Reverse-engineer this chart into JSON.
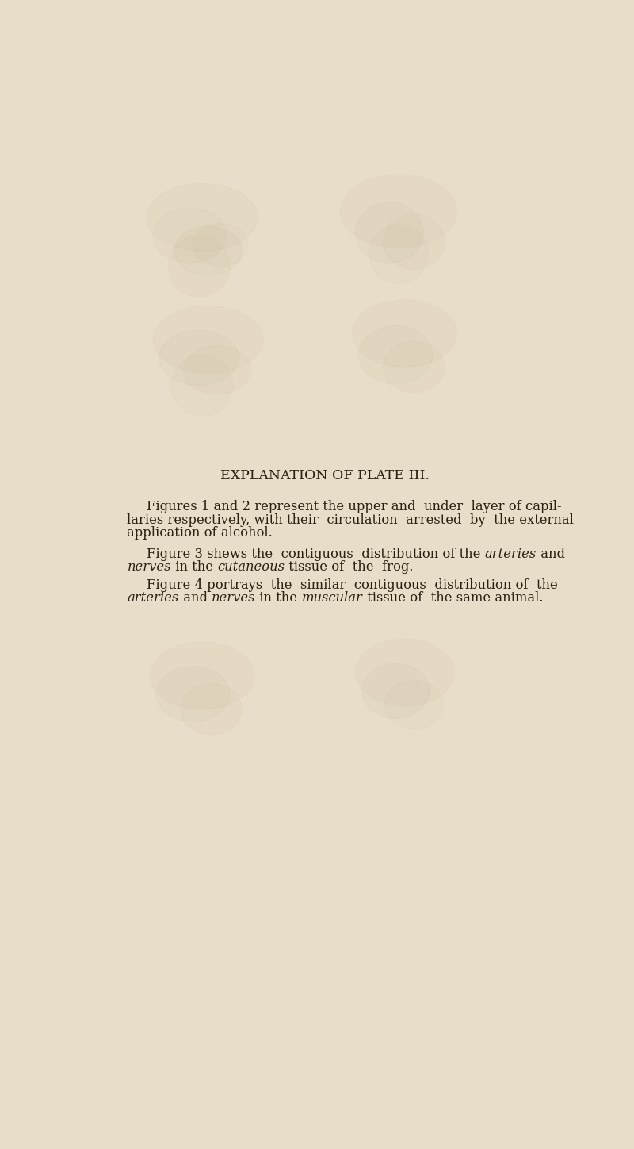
{
  "background_color": "#e8ddc8",
  "title": "EXPLANATION OF PLATE III.",
  "title_color": "#2a1f10",
  "body_color": "#2a1f10",
  "body_fontsize": 11.8,
  "title_fontsize": 12.5,
  "faded_color": "#c8b898",
  "para1_line1": "Figures 1 and 2 represent the upper and  under  layer of capil-",
  "para1_line2": "laries respectively, with their  circulation  arrested  by  the external",
  "para1_line3": "application of alcohol.",
  "para2_line1_pre": "Figure 3 shews the  contiguous  distribution of the ",
  "para2_line1_italic": "arteries",
  "para2_line1_post": " and",
  "para2_line2_italic1": "nerves",
  "para2_line2_mid1": " in the ",
  "para2_line2_italic2": "cutaneous",
  "para2_line2_post": " tissue of  the  frog.",
  "para3_line1": "Figure 4 portrays  the  similar  contiguous  distribution of  the",
  "para3_line2_italic1": "arteries",
  "para3_line2_mid1": " and ",
  "para3_line2_italic2": "nerves",
  "para3_line2_mid2": " in the ",
  "para3_line2_italic3": "muscular",
  "para3_line2_post": " tissue of  the same animal."
}
